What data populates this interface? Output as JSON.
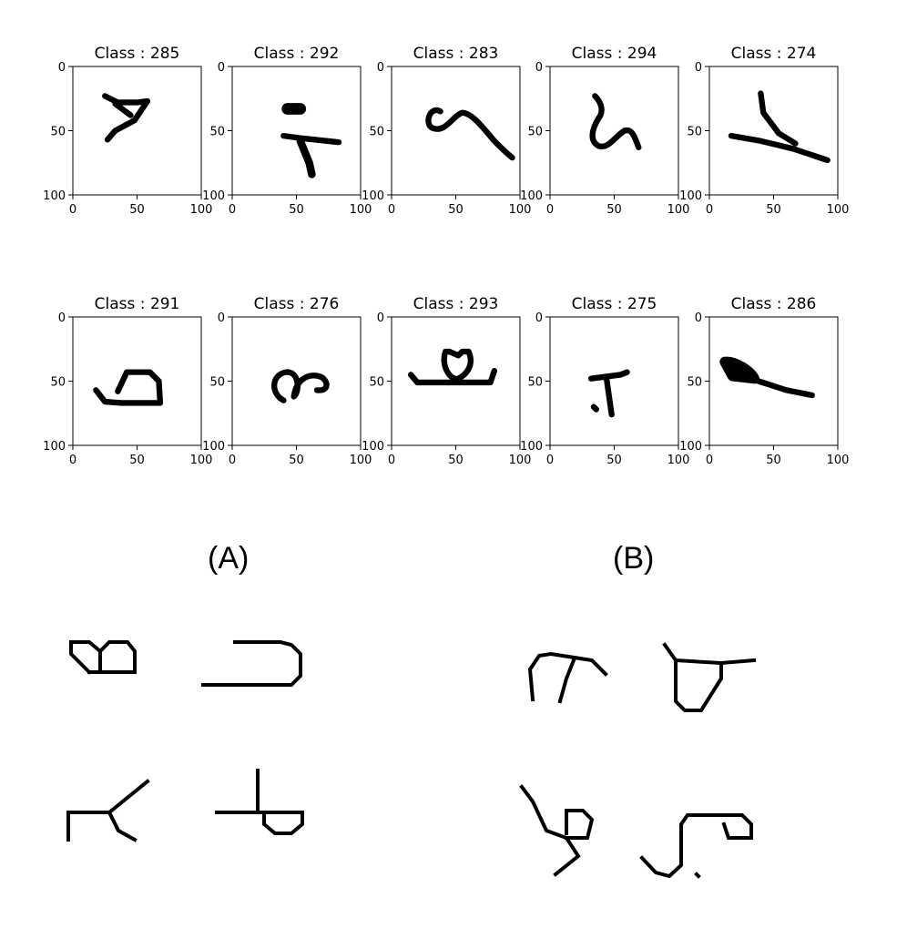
{
  "grid": {
    "axis_ticks": [
      "0",
      "50",
      "100"
    ],
    "panels": [
      {
        "title": "Class : 285",
        "glyph": "285-icon"
      },
      {
        "title": "Class : 292",
        "glyph": "292-icon"
      },
      {
        "title": "Class : 283",
        "glyph": "283-icon"
      },
      {
        "title": "Class : 294",
        "glyph": "294-icon"
      },
      {
        "title": "Class : 274",
        "glyph": "274-icon"
      },
      {
        "title": "Class : 291",
        "glyph": "291-icon"
      },
      {
        "title": "Class : 276",
        "glyph": "276-icon"
      },
      {
        "title": "Class : 293",
        "glyph": "293-icon"
      },
      {
        "title": "Class : 275",
        "glyph": "275-icon"
      },
      {
        "title": "Class : 286",
        "glyph": "286-icon"
      }
    ]
  },
  "samples": {
    "label_a": "(A)",
    "label_b": "(B)"
  }
}
